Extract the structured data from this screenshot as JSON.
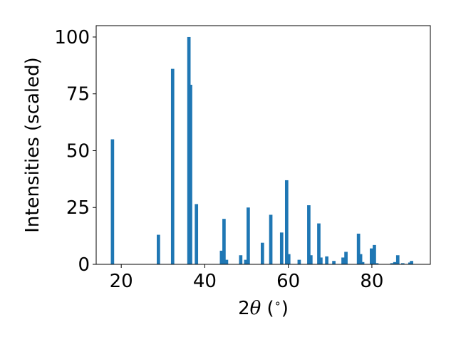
{
  "chart_data": {
    "type": "bar",
    "xlabel": "2θ (°)",
    "xlabel_parts": {
      "prefix": "2",
      "symbol": "θ",
      "suffix": " (",
      "unit": "∘",
      "close": ")"
    },
    "ylabel": "Intensities (scaled)",
    "xlim": [
      14.0,
      94.0
    ],
    "ylim": [
      0,
      105
    ],
    "xticks": [
      20,
      40,
      60,
      80
    ],
    "yticks": [
      0,
      25,
      50,
      75,
      100
    ],
    "bar_width": 0.8,
    "bar_color": "#1f77b4",
    "grid": false,
    "legend": "none",
    "x": [
      17.9,
      28.9,
      32.3,
      36.2,
      36.6,
      38.0,
      44.0,
      44.6,
      45.2,
      48.6,
      49.8,
      50.4,
      53.8,
      55.8,
      58.4,
      59.6,
      60.1,
      62.6,
      64.9,
      65.4,
      67.3,
      67.8,
      69.2,
      70.9,
      73.1,
      73.8,
      76.8,
      77.3,
      77.8,
      79.9,
      80.6,
      81.2,
      84.8,
      85.5,
      86.2,
      87.4,
      89.1,
      89.5
    ],
    "values": [
      55.0,
      13.0,
      86.0,
      100.0,
      79.0,
      26.5,
      6.0,
      20.0,
      2.0,
      4.0,
      2.0,
      25.0,
      9.5,
      21.8,
      14.0,
      37.0,
      4.5,
      2.0,
      26.0,
      4.0,
      18.0,
      3.0,
      3.5,
      1.5,
      3.0,
      5.5,
      13.5,
      4.5,
      1.0,
      7.0,
      8.5,
      0.5,
      0.5,
      1.0,
      4.0,
      0.5,
      0.8,
      1.5
    ]
  }
}
